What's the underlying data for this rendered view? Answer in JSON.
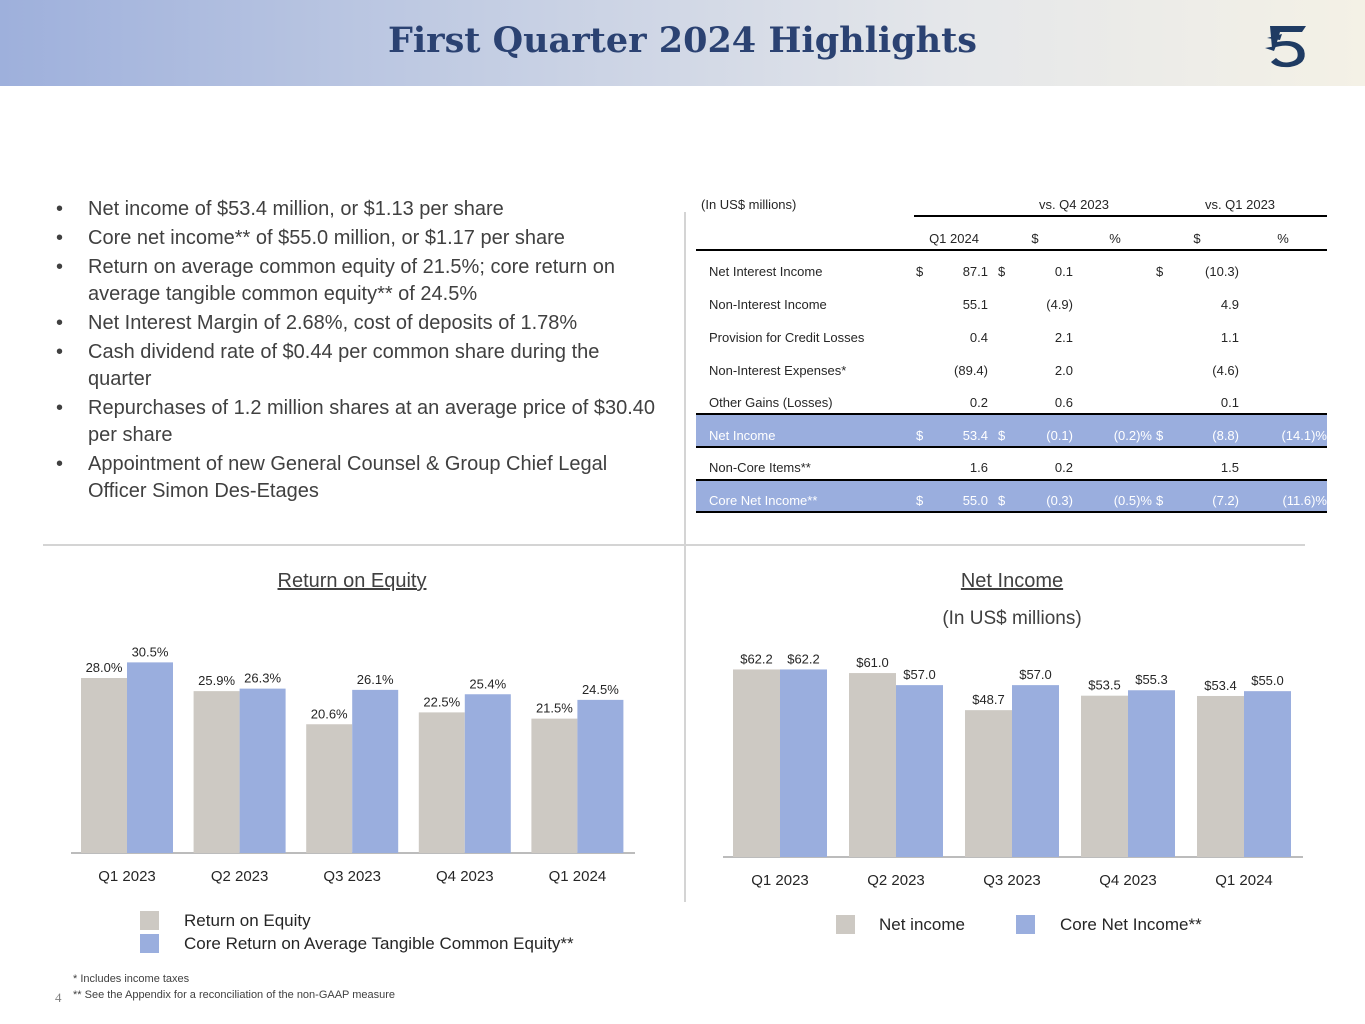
{
  "header": {
    "title": "First Quarter 2024 Highlights",
    "logo": "company-logo"
  },
  "bullets": [
    "Net income of $53.4 million, or $1.13 per share",
    "Core net income** of $55.0 million, or $1.17 per share",
    "Return on average common equity of 21.5%; core return on average tangible common equity** of 24.5%",
    "Net Interest Margin of 2.68%, cost of deposits of 1.78%",
    "Cash dividend rate of $0.44 per common share during the quarter",
    "Repurchases of 1.2 million shares at an average price of $30.40 per share",
    "Appointment of new General Counsel & Group Chief Legal Officer Simon Des-Etages"
  ],
  "table": {
    "unit_label": "(In US$ millions)",
    "group_q4": "vs. Q4  2023",
    "group_q1": "vs. Q1 2023",
    "col_q1_2024": "Q1 2024",
    "col_dollar": "$",
    "col_pct": "%",
    "rows": [
      {
        "label": "Net Interest Income",
        "cur_sign": "$",
        "q1_2024": "87.1",
        "q4_sign": "$",
        "vs_q4_dollar": "0.1",
        "vs_q4_pct": "",
        "q1_sign": "$",
        "vs_q1_dollar": "(10.3)",
        "vs_q1_pct": ""
      },
      {
        "label": "Non-Interest Income",
        "cur_sign": "",
        "q1_2024": "55.1",
        "q4_sign": "",
        "vs_q4_dollar": "(4.9)",
        "vs_q4_pct": "",
        "q1_sign": "",
        "vs_q1_dollar": "4.9",
        "vs_q1_pct": ""
      },
      {
        "label": "Provision for Credit Losses",
        "cur_sign": "",
        "q1_2024": "0.4",
        "q4_sign": "",
        "vs_q4_dollar": "2.1",
        "vs_q4_pct": "",
        "q1_sign": "",
        "vs_q1_dollar": "1.1",
        "vs_q1_pct": ""
      },
      {
        "label": "Non-Interest Expenses*",
        "cur_sign": "",
        "q1_2024": "(89.4)",
        "q4_sign": "",
        "vs_q4_dollar": "2.0",
        "vs_q4_pct": "",
        "q1_sign": "",
        "vs_q1_dollar": "(4.6)",
        "vs_q1_pct": ""
      },
      {
        "label": "Other Gains (Losses)",
        "cur_sign": "",
        "q1_2024": "0.2",
        "q4_sign": "",
        "vs_q4_dollar": "0.6",
        "vs_q4_pct": "",
        "q1_sign": "",
        "vs_q1_dollar": "0.1",
        "vs_q1_pct": ""
      },
      {
        "label": "Net Income",
        "cur_sign": "$",
        "q1_2024": "53.4",
        "q4_sign": "$",
        "vs_q4_dollar": "(0.1)",
        "vs_q4_pct": "(0.2)%",
        "q1_sign": "$",
        "vs_q1_dollar": "(8.8)",
        "vs_q1_pct": "(14.1)%"
      },
      {
        "label": "Non-Core Items**",
        "cur_sign": "",
        "q1_2024": "1.6",
        "q4_sign": "",
        "vs_q4_dollar": "0.2",
        "vs_q4_pct": "",
        "q1_sign": "",
        "vs_q1_dollar": "1.5",
        "vs_q1_pct": ""
      },
      {
        "label": "Core Net Income**",
        "cur_sign": "$",
        "q1_2024": "55.0",
        "q4_sign": "$",
        "vs_q4_dollar": "(0.3)",
        "vs_q4_pct": "(0.5)%",
        "q1_sign": "$",
        "vs_q1_dollar": "(7.2)",
        "vs_q1_pct": "(11.6)%"
      }
    ]
  },
  "colors": {
    "gray_bar": "#cdc9c3",
    "blue_bar": "#9aaede",
    "title": "#2b4272"
  },
  "chart_data": [
    {
      "type": "bar",
      "title": "Return on Equity",
      "categories": [
        "Q1 2023",
        "Q2 2023",
        "Q3 2023",
        "Q4 2023",
        "Q1 2024"
      ],
      "series": [
        {
          "name": "Return on Equity",
          "values": [
            28.0,
            25.9,
            20.6,
            22.5,
            21.5
          ],
          "labels": [
            "28.0%",
            "25.9%",
            "20.6%",
            "22.5%",
            "21.5%"
          ]
        },
        {
          "name": "Core Return on Average Tangible Common Equity**",
          "values": [
            30.5,
            26.3,
            26.1,
            25.4,
            24.5
          ],
          "labels": [
            "30.5%",
            "26.3%",
            "26.1%",
            "25.4%",
            "24.5%"
          ]
        }
      ],
      "ylim": [
        0,
        32
      ]
    },
    {
      "type": "bar",
      "title": "Net Income",
      "subtitle": "(In US$ millions)",
      "categories": [
        "Q1 2023",
        "Q2 2023",
        "Q3 2023",
        "Q4 2023",
        "Q1 2024"
      ],
      "series": [
        {
          "name": "Net income",
          "values": [
            62.2,
            61.0,
            48.7,
            53.5,
            53.4
          ],
          "labels": [
            "$62.2",
            "$61.0",
            "$48.7",
            "$53.5",
            "$53.4"
          ]
        },
        {
          "name": "Core Net Income**",
          "values": [
            62.2,
            57.0,
            57.0,
            55.3,
            55.0
          ],
          "labels": [
            "$62.2",
            "$57.0",
            "$57.0",
            "$55.3",
            "$55.0"
          ]
        }
      ],
      "ylim": [
        0,
        65
      ]
    }
  ],
  "footnotes": [
    "*  Includes income taxes",
    "** See the Appendix for a reconciliation of the non-GAAP measure"
  ],
  "page_number": "4"
}
